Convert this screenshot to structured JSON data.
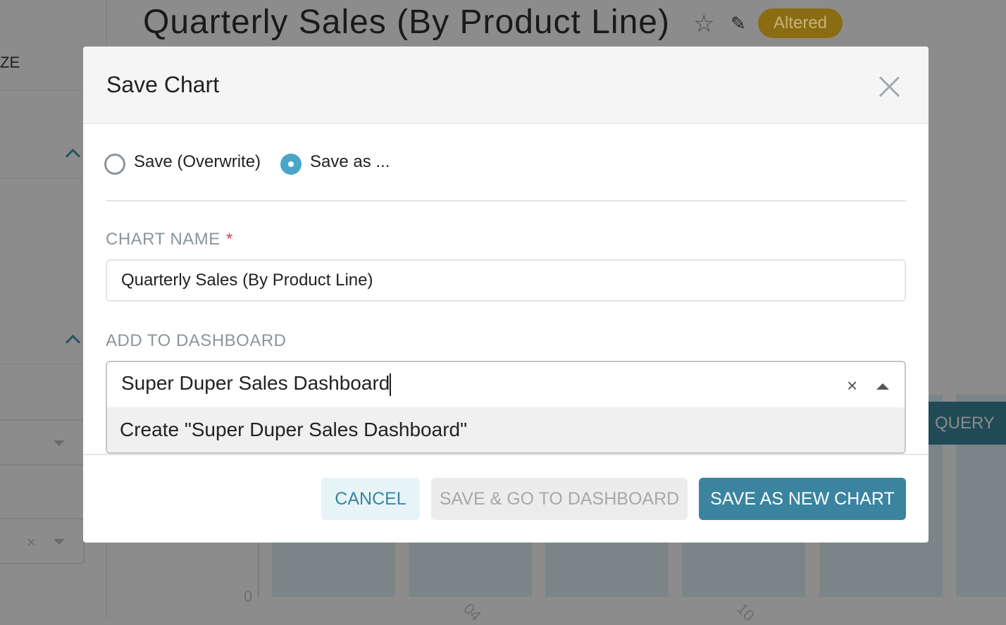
{
  "background": {
    "sidebar_label": "ZE",
    "chart_title": "Quarterly Sales (By Product Line)",
    "status_badge": "Altered",
    "query_button": "QUERY",
    "y_axis_zero": "0",
    "x_ticks": [
      "04",
      "10"
    ]
  },
  "modal": {
    "title": "Save Chart",
    "save_mode_options": [
      {
        "label": "Save (Overwrite)",
        "selected": false
      },
      {
        "label": "Save as ...",
        "selected": true
      }
    ],
    "chart_name_label": "CHART NAME",
    "required_marker": "*",
    "chart_name_value": "Quarterly Sales (By Product Line)",
    "dashboard_label": "ADD TO DASHBOARD",
    "dashboard_value": "Super Duper Sales Dashboard",
    "dashboard_option": "Create \"Super Duper Sales Dashboard\"",
    "buttons": {
      "cancel": "CANCEL",
      "save_go": "SAVE & GO TO DASHBOARD",
      "save_new": "SAVE AS NEW CHART"
    }
  },
  "colors": {
    "primary": "#3a84a0",
    "radio_selected": "#4aa6c9",
    "badge": "#8a6c12",
    "required": "#d9434f"
  }
}
